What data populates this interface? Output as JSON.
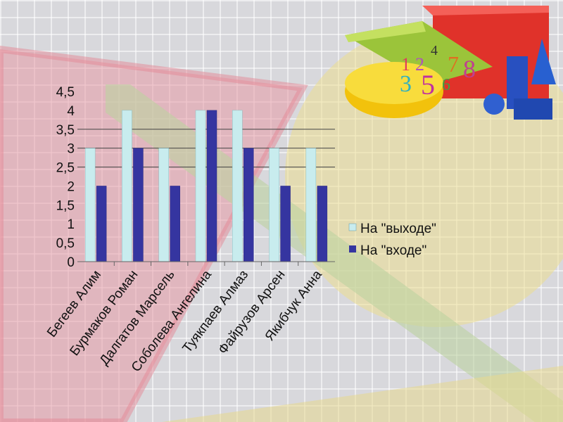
{
  "chart_data": {
    "type": "bar",
    "categories": [
      "Бегеев Алим",
      "Бурмаков Роман",
      "Далгатов Марсель",
      "Соболева Ангелина",
      "Туякпаев Алмаз",
      "Файрузов Арсен",
      "Якибчук Анна"
    ],
    "series": [
      {
        "name": "На \"выходе\"",
        "values": [
          3,
          4,
          3,
          4,
          4,
          3,
          3
        ],
        "color": "#c8ecee"
      },
      {
        "name": "На \"входе\"",
        "values": [
          2,
          3,
          2,
          4,
          3,
          2,
          2
        ],
        "color": "#3535a0"
      }
    ],
    "yticks": [
      "0",
      "0,5",
      "1",
      "1,5",
      "2",
      "2,5",
      "3",
      "3,5",
      "4",
      "4,5"
    ],
    "ylim": [
      0,
      4.5
    ],
    "grid": true,
    "legend_position": "right"
  }
}
